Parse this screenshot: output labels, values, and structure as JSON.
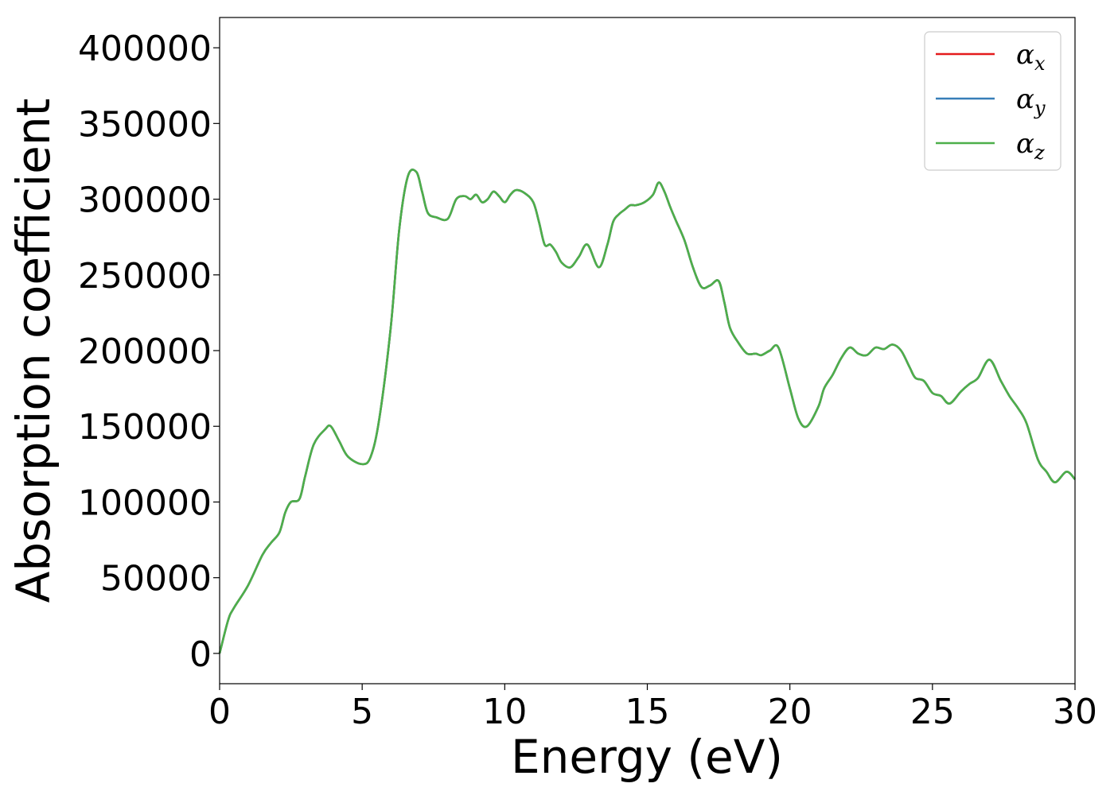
{
  "chart_data": {
    "type": "line",
    "title": "",
    "xlabel": "Energy (eV)",
    "ylabel": "Absorption coefficient",
    "xlim": [
      0,
      30
    ],
    "ylim": [
      -20000,
      420000
    ],
    "x_ticks": [
      0,
      5,
      10,
      15,
      20,
      25,
      30
    ],
    "y_ticks": [
      0,
      50000,
      100000,
      150000,
      200000,
      250000,
      300000,
      350000,
      400000
    ],
    "grid": false,
    "legend_position": "top-right",
    "series": [
      {
        "name": "αx",
        "symbol": "α",
        "subscript": "x",
        "color": "#e41a1c",
        "x": [
          0,
          0.3,
          0.5,
          1.0,
          1.5,
          1.8,
          2.1,
          2.3,
          2.5,
          2.8,
          3.0,
          3.3,
          3.7,
          3.9,
          4.2,
          4.5,
          5.0,
          5.3,
          5.6,
          6.0,
          6.3,
          6.6,
          6.9,
          7.1,
          7.3,
          7.6,
          8.0,
          8.3,
          8.6,
          8.8,
          9.0,
          9.2,
          9.4,
          9.6,
          9.8,
          10.0,
          10.2,
          10.4,
          10.7,
          11.0,
          11.2,
          11.4,
          11.6,
          11.8,
          12.0,
          12.3,
          12.6,
          12.9,
          13.3,
          13.6,
          13.8,
          14.0,
          14.2,
          14.4,
          14.6,
          14.9,
          15.2,
          15.4,
          15.6,
          15.8,
          16.0,
          16.3,
          16.6,
          16.9,
          17.2,
          17.5,
          17.7,
          17.9,
          18.2,
          18.5,
          18.8,
          19.0,
          19.3,
          19.6,
          20.0,
          20.3,
          20.6,
          21.0,
          21.2,
          21.5,
          21.8,
          22.1,
          22.4,
          22.7,
          23.0,
          23.3,
          23.6,
          23.9,
          24.2,
          24.4,
          24.7,
          25.0,
          25.3,
          25.6,
          26.0,
          26.3,
          26.6,
          27.0,
          27.4,
          27.7,
          28.0,
          28.3,
          28.7,
          29.0,
          29.3,
          29.7,
          30.0
        ],
        "y": [
          0,
          22000,
          30000,
          45000,
          65000,
          73000,
          80000,
          93000,
          100000,
          102000,
          117000,
          138000,
          148000,
          150000,
          140000,
          130000,
          125000,
          130000,
          155000,
          215000,
          280000,
          315000,
          318000,
          305000,
          291000,
          288000,
          287000,
          300000,
          302000,
          300000,
          303000,
          298000,
          300000,
          305000,
          302000,
          298000,
          303000,
          306000,
          304000,
          298000,
          285000,
          270000,
          270000,
          265000,
          258000,
          255000,
          262000,
          270000,
          255000,
          270000,
          285000,
          290000,
          293000,
          296000,
          296000,
          298000,
          303000,
          311000,
          305000,
          295000,
          286000,
          273000,
          255000,
          242000,
          243000,
          246000,
          232000,
          215000,
          205000,
          198000,
          198000,
          197000,
          200000,
          202000,
          175000,
          155000,
          150000,
          163000,
          175000,
          184000,
          195000,
          202000,
          198000,
          197000,
          202000,
          201000,
          204000,
          200000,
          189000,
          182000,
          180000,
          172000,
          170000,
          165000,
          173000,
          178000,
          182000,
          194000,
          180000,
          170000,
          162000,
          152000,
          128000,
          120000,
          113000,
          120000,
          115000
        ]
      },
      {
        "name": "αy",
        "symbol": "α",
        "subscript": "y",
        "color": "#377eb8",
        "x": [
          0,
          0.3,
          0.5,
          1.0,
          1.5,
          1.8,
          2.1,
          2.3,
          2.5,
          2.8,
          3.0,
          3.3,
          3.7,
          3.9,
          4.2,
          4.5,
          5.0,
          5.3,
          5.6,
          6.0,
          6.3,
          6.6,
          6.9,
          7.1,
          7.3,
          7.6,
          8.0,
          8.3,
          8.6,
          8.8,
          9.0,
          9.2,
          9.4,
          9.6,
          9.8,
          10.0,
          10.2,
          10.4,
          10.7,
          11.0,
          11.2,
          11.4,
          11.6,
          11.8,
          12.0,
          12.3,
          12.6,
          12.9,
          13.3,
          13.6,
          13.8,
          14.0,
          14.2,
          14.4,
          14.6,
          14.9,
          15.2,
          15.4,
          15.6,
          15.8,
          16.0,
          16.3,
          16.6,
          16.9,
          17.2,
          17.5,
          17.7,
          17.9,
          18.2,
          18.5,
          18.8,
          19.0,
          19.3,
          19.6,
          20.0,
          20.3,
          20.6,
          21.0,
          21.2,
          21.5,
          21.8,
          22.1,
          22.4,
          22.7,
          23.0,
          23.3,
          23.6,
          23.9,
          24.2,
          24.4,
          24.7,
          25.0,
          25.3,
          25.6,
          26.0,
          26.3,
          26.6,
          27.0,
          27.4,
          27.7,
          28.0,
          28.3,
          28.7,
          29.0,
          29.3,
          29.7,
          30.0
        ],
        "y": [
          0,
          22000,
          30000,
          45000,
          65000,
          73000,
          80000,
          93000,
          100000,
          102000,
          117000,
          138000,
          148000,
          150000,
          140000,
          130000,
          125000,
          130000,
          155000,
          215000,
          280000,
          315000,
          318000,
          305000,
          291000,
          288000,
          287000,
          300000,
          302000,
          300000,
          303000,
          298000,
          300000,
          305000,
          302000,
          298000,
          303000,
          306000,
          304000,
          298000,
          285000,
          270000,
          270000,
          265000,
          258000,
          255000,
          262000,
          270000,
          255000,
          270000,
          285000,
          290000,
          293000,
          296000,
          296000,
          298000,
          303000,
          311000,
          305000,
          295000,
          286000,
          273000,
          255000,
          242000,
          243000,
          246000,
          232000,
          215000,
          205000,
          198000,
          198000,
          197000,
          200000,
          202000,
          175000,
          155000,
          150000,
          163000,
          175000,
          184000,
          195000,
          202000,
          198000,
          197000,
          202000,
          201000,
          204000,
          200000,
          189000,
          182000,
          180000,
          172000,
          170000,
          165000,
          173000,
          178000,
          182000,
          194000,
          180000,
          170000,
          162000,
          152000,
          128000,
          120000,
          113000,
          120000,
          115000
        ]
      },
      {
        "name": "αz",
        "symbol": "α",
        "subscript": "z",
        "color": "#4daf4a",
        "x": [
          0,
          0.3,
          0.5,
          1.0,
          1.5,
          1.8,
          2.1,
          2.3,
          2.5,
          2.8,
          3.0,
          3.3,
          3.7,
          3.9,
          4.2,
          4.5,
          5.0,
          5.3,
          5.6,
          6.0,
          6.3,
          6.6,
          6.9,
          7.1,
          7.3,
          7.6,
          8.0,
          8.3,
          8.6,
          8.8,
          9.0,
          9.2,
          9.4,
          9.6,
          9.8,
          10.0,
          10.2,
          10.4,
          10.7,
          11.0,
          11.2,
          11.4,
          11.6,
          11.8,
          12.0,
          12.3,
          12.6,
          12.9,
          13.3,
          13.6,
          13.8,
          14.0,
          14.2,
          14.4,
          14.6,
          14.9,
          15.2,
          15.4,
          15.6,
          15.8,
          16.0,
          16.3,
          16.6,
          16.9,
          17.2,
          17.5,
          17.7,
          17.9,
          18.2,
          18.5,
          18.8,
          19.0,
          19.3,
          19.6,
          20.0,
          20.3,
          20.6,
          21.0,
          21.2,
          21.5,
          21.8,
          22.1,
          22.4,
          22.7,
          23.0,
          23.3,
          23.6,
          23.9,
          24.2,
          24.4,
          24.7,
          25.0,
          25.3,
          25.6,
          26.0,
          26.3,
          26.6,
          27.0,
          27.4,
          27.7,
          28.0,
          28.3,
          28.7,
          29.0,
          29.3,
          29.7,
          30.0
        ],
        "y": [
          0,
          22000,
          30000,
          45000,
          65000,
          73000,
          80000,
          93000,
          100000,
          102000,
          117000,
          138000,
          148000,
          150000,
          140000,
          130000,
          125000,
          130000,
          155000,
          215000,
          280000,
          315000,
          318000,
          305000,
          291000,
          288000,
          287000,
          300000,
          302000,
          300000,
          303000,
          298000,
          300000,
          305000,
          302000,
          298000,
          303000,
          306000,
          304000,
          298000,
          285000,
          270000,
          270000,
          265000,
          258000,
          255000,
          262000,
          270000,
          255000,
          270000,
          285000,
          290000,
          293000,
          296000,
          296000,
          298000,
          303000,
          311000,
          305000,
          295000,
          286000,
          273000,
          255000,
          242000,
          243000,
          246000,
          232000,
          215000,
          205000,
          198000,
          198000,
          197000,
          200000,
          202000,
          175000,
          155000,
          150000,
          163000,
          175000,
          184000,
          195000,
          202000,
          198000,
          197000,
          202000,
          201000,
          204000,
          200000,
          189000,
          182000,
          180000,
          172000,
          170000,
          165000,
          173000,
          178000,
          182000,
          194000,
          180000,
          170000,
          162000,
          152000,
          128000,
          120000,
          113000,
          120000,
          115000
        ]
      }
    ]
  }
}
